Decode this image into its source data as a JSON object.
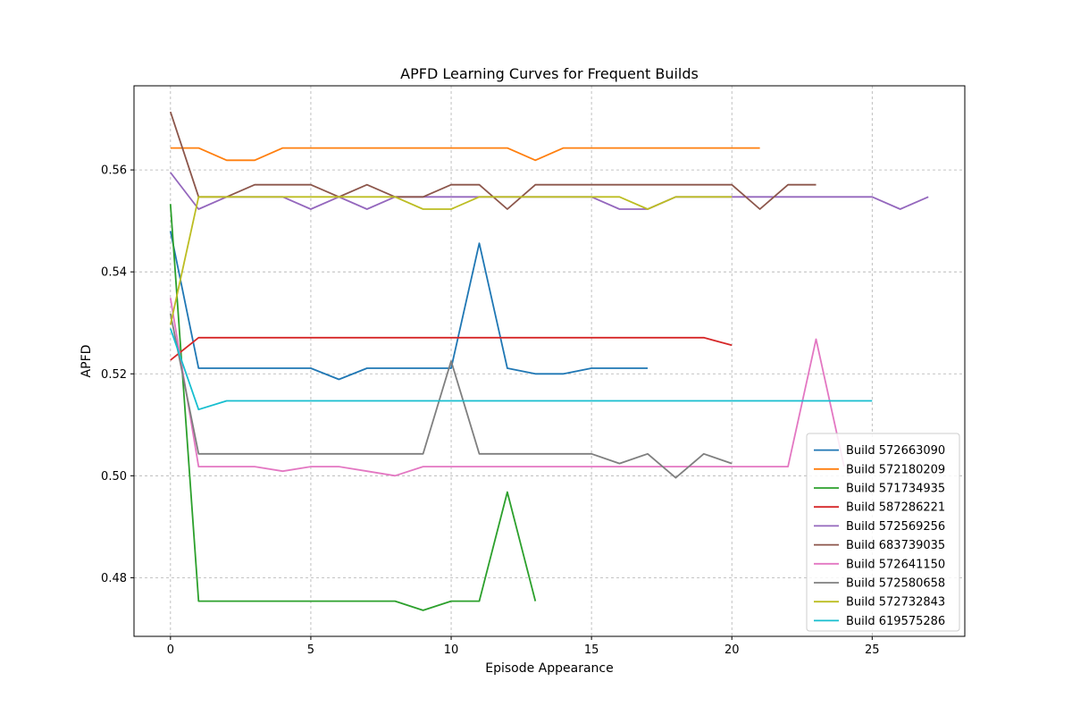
{
  "chart_data": {
    "type": "line",
    "title": "APFD Learning Curves for Frequent Builds",
    "xlabel": "Episode Appearance",
    "ylabel": "APFD",
    "xlim": [
      -1.3,
      28.3
    ],
    "ylim": [
      0.4685,
      0.5765
    ],
    "xticks": [
      0,
      5,
      10,
      15,
      20,
      25
    ],
    "yticks": [
      0.48,
      0.5,
      0.52,
      0.54,
      0.56
    ],
    "ytick_labels": [
      "0.48",
      "0.50",
      "0.52",
      "0.54",
      "0.56"
    ],
    "grid": true,
    "legend_position": "lower-right",
    "series": [
      {
        "name": "Build 572663090",
        "color": "#1f77b4",
        "values": [
          0.548,
          0.5211,
          0.5211,
          0.5211,
          0.5211,
          0.5211,
          0.5189,
          0.5211,
          0.5211,
          0.5211,
          0.5211,
          0.5456,
          0.5211,
          0.52,
          0.52,
          0.5211,
          0.5211,
          0.5211
        ]
      },
      {
        "name": "Build 572180209",
        "color": "#ff7f0e",
        "values": [
          0.5643,
          0.5643,
          0.5619,
          0.5619,
          0.5643,
          0.5643,
          0.5643,
          0.5643,
          0.5643,
          0.5643,
          0.5643,
          0.5643,
          0.5643,
          0.5619,
          0.5643,
          0.5643,
          0.5643,
          0.5643,
          0.5643,
          0.5643,
          0.5643,
          0.5643
        ]
      },
      {
        "name": "Build 571734935",
        "color": "#2ca02c",
        "values": [
          0.5533,
          0.4754,
          0.4754,
          0.4754,
          0.4754,
          0.4754,
          0.4754,
          0.4754,
          0.4754,
          0.4736,
          0.4754,
          0.4754,
          0.4968,
          0.4754
        ]
      },
      {
        "name": "Build 587286221",
        "color": "#d62728",
        "values": [
          0.5227,
          0.5271,
          0.5271,
          0.5271,
          0.5271,
          0.5271,
          0.5271,
          0.5271,
          0.5271,
          0.5271,
          0.5271,
          0.5271,
          0.5271,
          0.5271,
          0.5271,
          0.5271,
          0.5271,
          0.5271,
          0.5271,
          0.5271,
          0.5256
        ]
      },
      {
        "name": "Build 572569256",
        "color": "#9467bd",
        "values": [
          0.5595,
          0.5523,
          0.5547,
          0.5547,
          0.5547,
          0.5523,
          0.5547,
          0.5523,
          0.5547,
          0.5547,
          0.5547,
          0.5547,
          0.5547,
          0.5547,
          0.5547,
          0.5547,
          0.5523,
          0.5523,
          0.5547,
          0.5547,
          0.5547,
          0.5547,
          0.5547,
          0.5547,
          0.5547,
          0.5547,
          0.5523,
          0.5547
        ]
      },
      {
        "name": "Build 683739035",
        "color": "#8c564b",
        "values": [
          0.5714,
          0.5547,
          0.5547,
          0.5571,
          0.5571,
          0.5571,
          0.5547,
          0.5571,
          0.5547,
          0.5547,
          0.5571,
          0.5571,
          0.5523,
          0.5571,
          0.5571,
          0.5571,
          0.5571,
          0.5571,
          0.5571,
          0.5571,
          0.5571,
          0.5523,
          0.5571,
          0.5571
        ]
      },
      {
        "name": "Build 572641150",
        "color": "#e377c2",
        "values": [
          0.5349,
          0.5018,
          0.5018,
          0.5018,
          0.5009,
          0.5018,
          0.5018,
          0.5009,
          0.5,
          0.5018,
          0.5018,
          0.5018,
          0.5018,
          0.5018,
          0.5018,
          0.5018,
          0.5018,
          0.5018,
          0.5018,
          0.5018,
          0.5018,
          0.5018,
          0.5018,
          0.5268,
          0.5018
        ]
      },
      {
        "name": "Build 572580658",
        "color": "#7f7f7f",
        "values": [
          0.5318,
          0.5043,
          0.5043,
          0.5043,
          0.5043,
          0.5043,
          0.5043,
          0.5043,
          0.5043,
          0.5043,
          0.5225,
          0.5043,
          0.5043,
          0.5043,
          0.5043,
          0.5043,
          0.5024,
          0.5043,
          0.4996,
          0.5043,
          0.5024
        ]
      },
      {
        "name": "Build 572732843",
        "color": "#bcbd22",
        "values": [
          0.5296,
          0.5547,
          0.5547,
          0.5547,
          0.5547,
          0.5547,
          0.5547,
          0.5547,
          0.5547,
          0.5523,
          0.5523,
          0.5547,
          0.5547,
          0.5547,
          0.5547,
          0.5547,
          0.5547,
          0.5523,
          0.5547,
          0.5547,
          0.5547
        ]
      },
      {
        "name": "Build 619575286",
        "color": "#17becf",
        "values": [
          0.5289,
          0.513,
          0.5147,
          0.5147,
          0.5147,
          0.5147,
          0.5147,
          0.5147,
          0.5147,
          0.5147,
          0.5147,
          0.5147,
          0.5147,
          0.5147,
          0.5147,
          0.5147,
          0.5147,
          0.5147,
          0.5147,
          0.5147,
          0.5147,
          0.5147,
          0.5147,
          0.5147,
          0.5147,
          0.5147
        ]
      }
    ]
  }
}
